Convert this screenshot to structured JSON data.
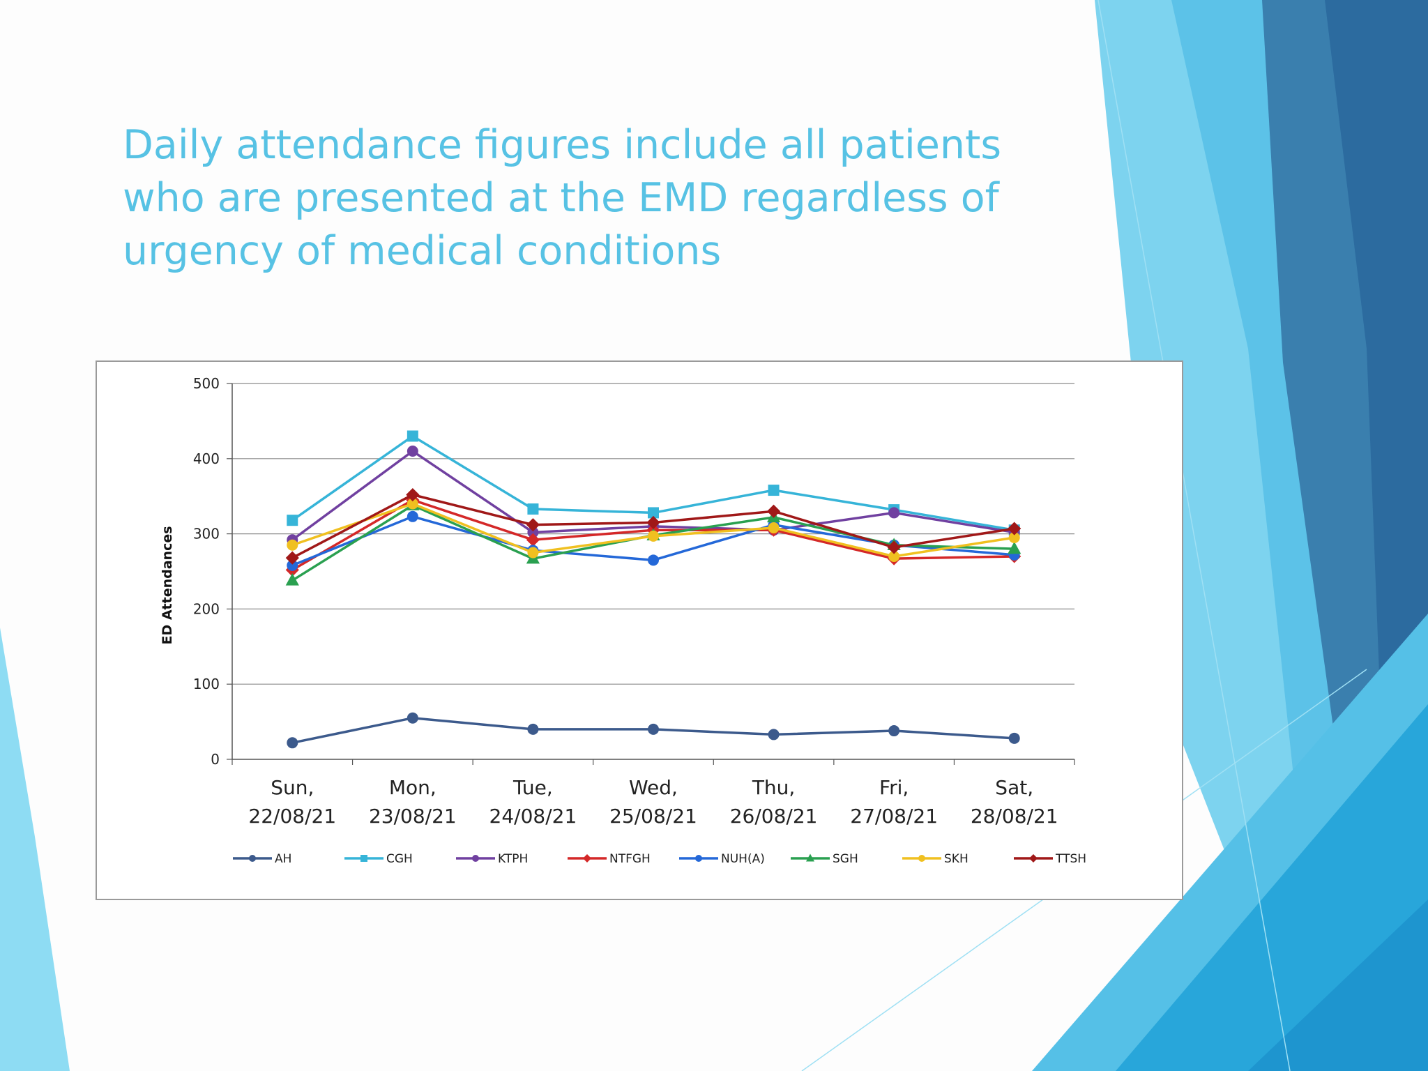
{
  "slide": {
    "title": "Daily attendance figures include all patients who are presented at the EMD regardless of urgency of medical conditions"
  },
  "theme": {
    "title_color": "#57c2e4"
  },
  "chart_data": {
    "type": "line",
    "ylabel": "ED Attendances",
    "xlabel": "",
    "ylim": [
      0,
      500
    ],
    "yticks": [
      0,
      100,
      200,
      300,
      400,
      500
    ],
    "grid": true,
    "legend_position": "bottom",
    "categories": [
      [
        "Sun,",
        "22/08/21"
      ],
      [
        "Mon,",
        "23/08/21"
      ],
      [
        "Tue,",
        "24/08/21"
      ],
      [
        "Wed,",
        "25/08/21"
      ],
      [
        "Thu,",
        "26/08/21"
      ],
      [
        "Fri,",
        "27/08/21"
      ],
      [
        "Sat,",
        "28/08/21"
      ]
    ],
    "series": [
      {
        "name": "AH",
        "color": "#3c5a8c",
        "marker": "circle",
        "values": [
          22,
          55,
          40,
          40,
          33,
          38,
          28
        ]
      },
      {
        "name": "CGH",
        "color": "#36b4d8",
        "marker": "square",
        "values": [
          318,
          430,
          333,
          328,
          358,
          332,
          305
        ]
      },
      {
        "name": "KTPH",
        "color": "#7040a0",
        "marker": "circle",
        "values": [
          292,
          410,
          302,
          310,
          305,
          328,
          302
        ]
      },
      {
        "name": "NTFGH",
        "color": "#d42828",
        "marker": "diamond",
        "values": [
          252,
          345,
          292,
          305,
          305,
          267,
          270
        ]
      },
      {
        "name": "NUH(A)",
        "color": "#2468d8",
        "marker": "circle",
        "values": [
          258,
          323,
          278,
          265,
          312,
          285,
          272
        ]
      },
      {
        "name": "SGH",
        "color": "#2aa050",
        "marker": "triangle",
        "values": [
          238,
          338,
          267,
          298,
          322,
          285,
          280
        ]
      },
      {
        "name": "SKH",
        "color": "#f0c020",
        "marker": "circle",
        "values": [
          285,
          340,
          275,
          297,
          308,
          270,
          295
        ]
      },
      {
        "name": "TTSH",
        "color": "#a01818",
        "marker": "diamond",
        "values": [
          268,
          352,
          312,
          315,
          330,
          282,
          307
        ]
      }
    ]
  }
}
